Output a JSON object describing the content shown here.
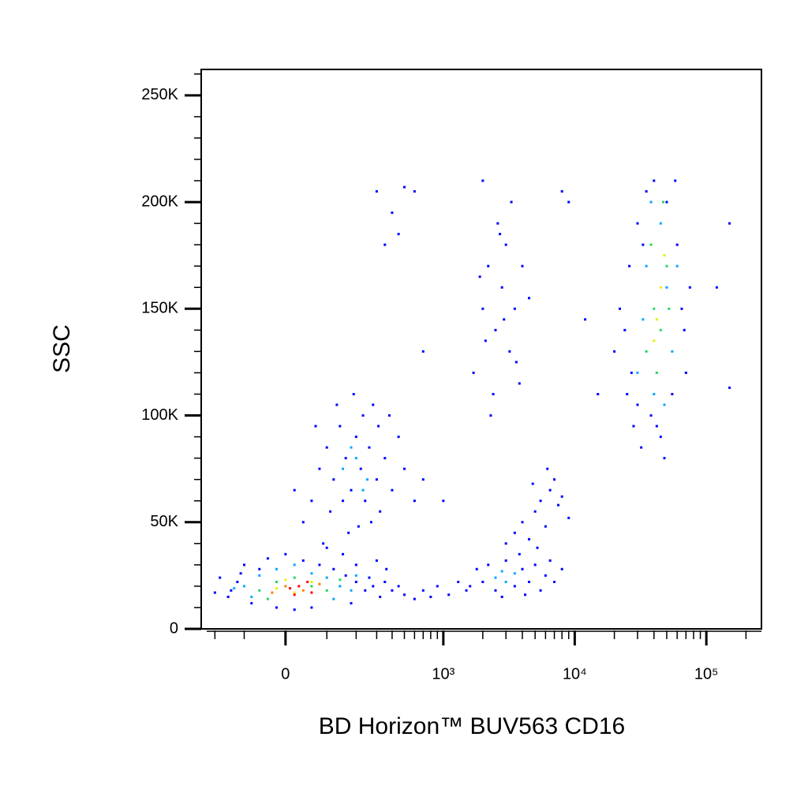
{
  "chart_data": {
    "type": "scatter",
    "xlabel": "BD Horizon™ BUV563 CD16",
    "ylabel": "SSC",
    "xscale": "biexponential",
    "xlim": [
      -263,
      262144
    ],
    "ylim": [
      0,
      262144
    ],
    "xticks": [
      0,
      {
        "value": 1000,
        "label": "10³"
      },
      {
        "value": 10000,
        "label": "10⁴"
      },
      {
        "value": 100000,
        "label": "10⁵"
      }
    ],
    "xminorticks": [
      -200,
      -100,
      100,
      200,
      300,
      400,
      500,
      600,
      700,
      800,
      900,
      2000,
      3000,
      4000,
      5000,
      6000,
      7000,
      8000,
      9000,
      20000,
      30000,
      40000,
      50000,
      60000,
      70000,
      80000,
      90000,
      200000
    ],
    "yticks": [
      0,
      {
        "value": 50000,
        "label": "50K"
      },
      {
        "value": 100000,
        "label": "100K"
      },
      {
        "value": 150000,
        "label": "150K"
      },
      {
        "value": 200000,
        "label": "200K"
      },
      {
        "value": 250000,
        "label": "250K"
      }
    ],
    "yminorticks": [
      10000,
      20000,
      30000,
      40000,
      60000,
      70000,
      80000,
      90000,
      110000,
      120000,
      130000,
      140000,
      160000,
      170000,
      180000,
      190000,
      210000,
      220000,
      230000,
      240000,
      260000
    ],
    "series": [
      {
        "color": "#0000ff",
        "x": [
          -150,
          -120,
          -100,
          -80,
          -60,
          -40,
          0,
          40,
          80,
          120,
          160,
          200,
          240,
          280,
          320,
          -140,
          -110,
          200,
          150,
          100,
          60,
          20,
          -20,
          180,
          260,
          350,
          400,
          450,
          500,
          600,
          700,
          800,
          900,
          1100,
          1300,
          1500,
          -200,
          -180,
          360,
          300,
          60,
          80,
          100,
          120,
          140,
          160,
          180,
          200,
          220,
          240,
          260,
          280,
          300,
          320,
          350,
          400,
          450,
          500,
          600,
          40,
          70,
          110,
          130,
          170,
          190,
          230,
          270,
          310,
          380,
          700,
          20,
          90,
          150,
          210,
          1700,
          2000,
          2200,
          2500,
          2800,
          3000,
          3200,
          3500,
          4000,
          2400,
          2600,
          3300,
          2100,
          2900,
          3600,
          4500,
          1900,
          3800,
          2300,
          2700,
          1600,
          1800,
          2000,
          2200,
          2500,
          3000,
          3500,
          4000,
          4500,
          5000,
          5500,
          6000,
          7000,
          8000,
          2800,
          3800,
          4200,
          6500,
          3000,
          3500,
          4000,
          4500,
          5000,
          5500,
          6000,
          6500,
          7000,
          7500,
          8000,
          5200,
          4800,
          6200,
          9000,
          20000,
          22000,
          25000,
          26000,
          28000,
          30000,
          32000,
          35000,
          38000,
          40000,
          45000,
          50000,
          55000,
          60000,
          65000,
          70000,
          75000,
          24000,
          27000,
          33000,
          48000,
          58000,
          68000,
          30000,
          42000,
          300,
          400,
          500,
          350,
          450,
          600,
          8000,
          9000,
          150000,
          150000,
          120000,
          2000,
          12000,
          15000,
          700,
          1000
        ],
        "y": [
          15000,
          22000,
          30000,
          12000,
          28000,
          33000,
          35000,
          32000,
          30000,
          28000,
          25000,
          22000,
          18000,
          20000,
          15000,
          18000,
          26000,
          30000,
          35000,
          38000,
          10000,
          9000,
          10000,
          12000,
          24000,
          22000,
          18000,
          20000,
          16000,
          14000,
          18000,
          15000,
          20000,
          16000,
          22000,
          18000,
          17000,
          24000,
          28000,
          32000,
          60000,
          75000,
          85000,
          70000,
          95000,
          80000,
          65000,
          90000,
          75000,
          60000,
          85000,
          105000,
          70000,
          55000,
          80000,
          65000,
          90000,
          75000,
          60000,
          50000,
          95000,
          55000,
          105000,
          45000,
          110000,
          100000,
          50000,
          95000,
          100000,
          70000,
          65000,
          40000,
          60000,
          48000,
          120000,
          150000,
          170000,
          140000,
          160000,
          180000,
          130000,
          150000,
          170000,
          110000,
          190000,
          200000,
          135000,
          145000,
          125000,
          155000,
          165000,
          115000,
          100000,
          185000,
          20000,
          28000,
          22000,
          30000,
          18000,
          32000,
          20000,
          28000,
          22000,
          30000,
          18000,
          25000,
          22000,
          28000,
          15000,
          35000,
          16000,
          32000,
          40000,
          45000,
          50000,
          42000,
          55000,
          60000,
          48000,
          65000,
          70000,
          58000,
          62000,
          38000,
          68000,
          75000,
          52000,
          130000,
          150000,
          110000,
          170000,
          95000,
          190000,
          85000,
          205000,
          100000,
          210000,
          90000,
          200000,
          110000,
          180000,
          150000,
          120000,
          160000,
          140000,
          120000,
          180000,
          80000,
          210000,
          140000,
          105000,
          95000,
          205000,
          195000,
          207000,
          180000,
          185000,
          205000,
          205000,
          200000,
          190000,
          113000,
          160000,
          210000,
          145000,
          110000,
          130000,
          60000
        ]
      },
      {
        "color": "#00a8ff",
        "x": [
          -100,
          -60,
          -20,
          20,
          60,
          100,
          140,
          180,
          -80,
          120,
          200,
          -130,
          150,
          200,
          250,
          180,
          230,
          2500,
          3000,
          3500,
          2800,
          30000,
          35000,
          40000,
          45000,
          50000,
          55000,
          38000,
          48000,
          33000,
          60000
        ],
        "y": [
          20000,
          25000,
          28000,
          30000,
          26000,
          24000,
          20000,
          18000,
          15000,
          14000,
          25000,
          19000,
          75000,
          80000,
          70000,
          85000,
          65000,
          24000,
          22000,
          26000,
          27000,
          120000,
          170000,
          110000,
          190000,
          160000,
          130000,
          200000,
          105000,
          145000,
          170000
        ]
      },
      {
        "color": "#20d860",
        "x": [
          -60,
          -20,
          20,
          60,
          100,
          -40,
          140,
          35000,
          40000,
          45000,
          50000,
          42000,
          38000,
          47000,
          52000
        ],
        "y": [
          18000,
          22000,
          24000,
          20000,
          18000,
          14000,
          23000,
          130000,
          150000,
          140000,
          170000,
          120000,
          180000,
          200000,
          150000
        ]
      },
      {
        "color": "#e8f000",
        "x": [
          -20,
          20,
          60,
          0,
          42000,
          45000,
          40000,
          48000
        ],
        "y": [
          19000,
          17000,
          22000,
          23000,
          145000,
          160000,
          135000,
          175000
        ]
      },
      {
        "color": "#ff8000",
        "x": [
          0,
          40,
          80,
          -30
        ],
        "y": [
          20000,
          18000,
          21000,
          17000
        ]
      },
      {
        "color": "#ff0000",
        "x": [
          10,
          30,
          60,
          50,
          20
        ],
        "y": [
          19000,
          20000,
          17000,
          22000,
          16000
        ]
      }
    ]
  }
}
